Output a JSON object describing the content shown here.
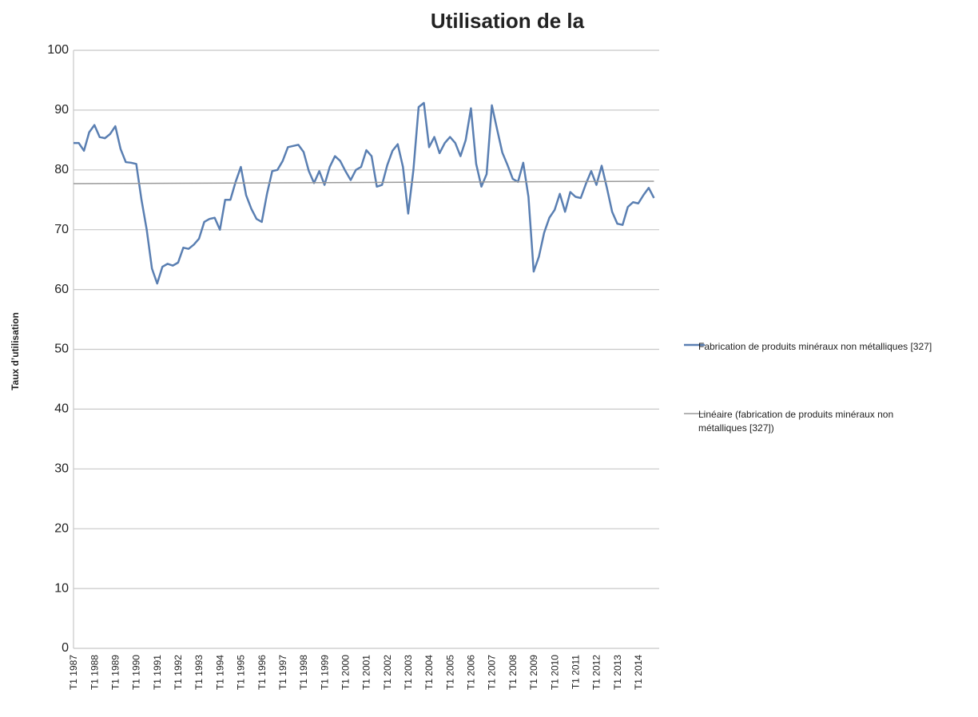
{
  "chart_data": {
    "type": "line",
    "title": "Utilisation de la",
    "y_label": "Taux d’utilisation",
    "categories": [
      "T1 1987",
      null,
      null,
      null,
      "T1 1988",
      null,
      null,
      null,
      "T1 1989",
      null,
      null,
      null,
      "T1 1990",
      null,
      null,
      null,
      "T1 1991",
      null,
      null,
      null,
      "T1 1992",
      null,
      null,
      null,
      "T1 1993",
      null,
      null,
      null,
      "T1 1994",
      null,
      null,
      null,
      "T1 1995",
      null,
      null,
      null,
      "T1 1996",
      null,
      null,
      null,
      "T1 1997",
      null,
      null,
      null,
      "T1 1998",
      null,
      null,
      null,
      "T1 1999",
      null,
      null,
      null,
      "T1 2000",
      null,
      null,
      null,
      "T1 2001",
      null,
      null,
      null,
      "T1 2002",
      null,
      null,
      null,
      "T1 2003",
      null,
      null,
      null,
      "T1 2004",
      null,
      null,
      null,
      "T1 2005",
      null,
      null,
      null,
      "T1 2006",
      null,
      null,
      null,
      "T1 2007",
      null,
      null,
      null,
      "T1 2008",
      null,
      null,
      null,
      "T1 2009",
      null,
      null,
      null,
      "T1 2010",
      null,
      null,
      null,
      "T1 2011",
      null,
      null,
      null,
      "T1 2012",
      null,
      null,
      null,
      "T1 2013",
      null,
      null,
      null,
      "T1 2014",
      null,
      null,
      null
    ],
    "series": [
      {
        "name": "Fabrication de produits minéraux non métalliques [327]",
        "color": "#5a7fb2",
        "values": [
          84.5,
          84.5,
          83.2,
          86.3,
          87.5,
          85.5,
          85.3,
          86,
          87.3,
          83.5,
          81.3,
          81.2,
          81,
          75,
          70,
          63.5,
          61,
          63.8,
          64.3,
          64,
          64.5,
          67,
          66.8,
          67.5,
          68.5,
          71.3,
          71.8,
          72,
          70,
          75,
          75,
          78,
          80.5,
          75.8,
          73.5,
          71.8,
          71.3,
          76,
          79.8,
          80,
          81.5,
          83.8,
          84,
          84.2,
          83,
          79.8,
          77.8,
          79.8,
          77.5,
          80.5,
          82.3,
          81.5,
          79.8,
          78.3,
          80,
          80.5,
          83.3,
          82.3,
          77.2,
          77.5,
          80.8,
          83.2,
          84.3,
          80.5,
          72.7,
          80,
          90.5,
          91.2,
          83.8,
          85.5,
          82.8,
          84.5,
          85.5,
          84.5,
          82.3,
          85,
          90.3,
          81,
          77.2,
          79.3,
          90.8,
          86.8,
          82.9,
          80.8,
          78.5,
          78,
          81.2,
          75.5,
          63,
          65.5,
          69.5,
          72,
          73.3,
          76,
          73,
          76.3,
          75.5,
          75.3,
          77.7,
          79.8,
          77.5,
          80.7,
          77,
          73,
          71,
          70.8,
          73.8,
          74.6,
          74.4,
          75.8,
          77,
          75.3
        ]
      }
    ],
    "trendline": {
      "name": "Linéaire (fabrication de produits minéraux non métalliques [327])",
      "color": "#9a9a9a",
      "start": 77.7,
      "end": 78.1
    },
    "ylim": [
      0,
      100
    ],
    "yticks": [
      0,
      10,
      20,
      30,
      40,
      50,
      60,
      70,
      80,
      90,
      100
    ],
    "grid": true
  }
}
